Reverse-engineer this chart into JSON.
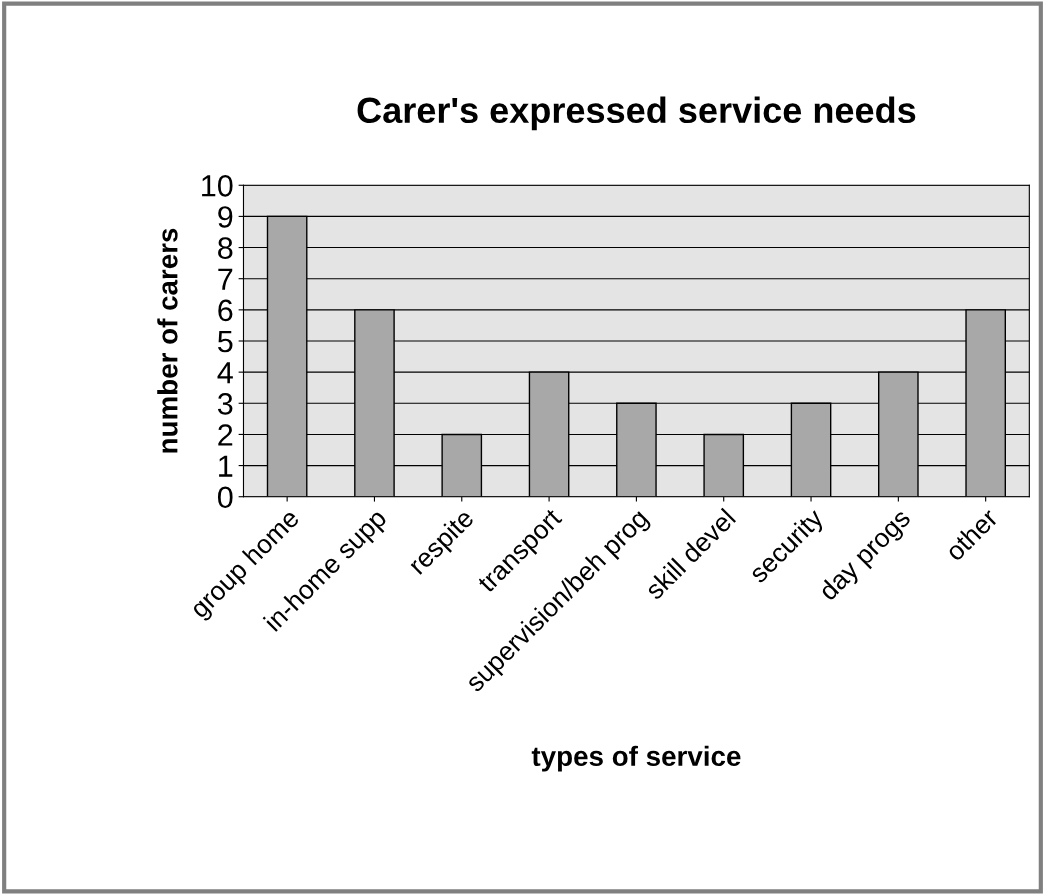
{
  "chart_data": {
    "type": "bar",
    "title": "Carer's expressed service needs",
    "xlabel": "types of service",
    "ylabel": "number of carers",
    "categories": [
      "group home",
      "in-home supp",
      "respite",
      "transport",
      "supervision/beh prog",
      "skill devel",
      "security",
      "day progs",
      "other"
    ],
    "values": [
      9,
      6,
      2,
      4,
      3,
      2,
      3,
      4,
      6
    ],
    "color": "#a8a8a8",
    "ylim": [
      0,
      10
    ],
    "yticks": [
      0,
      1,
      2,
      3,
      4,
      5,
      6,
      7,
      8,
      9,
      10
    ],
    "grid": "y"
  }
}
